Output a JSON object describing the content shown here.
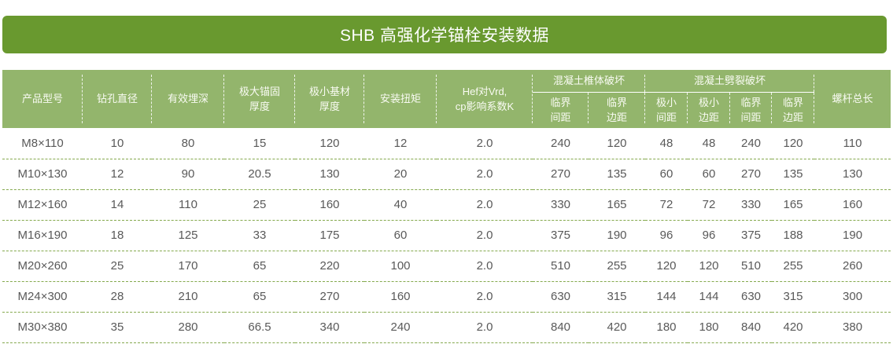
{
  "title": "SHB 高强化学锚栓安装数据",
  "colors": {
    "title_bar_green": "#69992f",
    "header_green": "#93b56c",
    "row_divider_green": "#85a94e",
    "header_text": "#f9fbf3",
    "body_text": "#595959"
  },
  "table": {
    "header": {
      "product_model": "产品型号",
      "drill_diameter": "钻孔直径",
      "effective_depth": "有效埋深",
      "max_anchor_thickness": "极大锚固\n厚度",
      "min_base_thickness": "极小基材\n厚度",
      "install_torque": "安装扭矩",
      "hef_k_factor": "Hef对Vrd,\ncp影响系数K",
      "groups": [
        {
          "label": "混凝土椎体破坏",
          "sub": [
            "临界\n间距",
            "临界\n边距"
          ]
        },
        {
          "label": "混凝土劈裂破坏",
          "sub": [
            "极小\n间距",
            "极小\n边距",
            "临界\n间距",
            "临界\n边距"
          ]
        }
      ],
      "total_rod_length": "螺杆总长"
    },
    "rows": [
      [
        "M8×110",
        "10",
        "80",
        "15",
        "120",
        "12",
        "2.0",
        "240",
        "120",
        "48",
        "48",
        "240",
        "120",
        "110"
      ],
      [
        "M10×130",
        "12",
        "90",
        "20.5",
        "130",
        "20",
        "2.0",
        "270",
        "135",
        "60",
        "60",
        "270",
        "135",
        "130"
      ],
      [
        "M12×160",
        "14",
        "110",
        "25",
        "160",
        "40",
        "2.0",
        "330",
        "165",
        "72",
        "72",
        "330",
        "165",
        "160"
      ],
      [
        "M16×190",
        "18",
        "125",
        "33",
        "175",
        "60",
        "2.0",
        "375",
        "190",
        "96",
        "96",
        "375",
        "188",
        "190"
      ],
      [
        "M20×260",
        "25",
        "170",
        "65",
        "220",
        "100",
        "2.0",
        "510",
        "255",
        "120",
        "120",
        "510",
        "255",
        "260"
      ],
      [
        "M24×300",
        "28",
        "210",
        "65",
        "270",
        "160",
        "2.0",
        "630",
        "315",
        "144",
        "144",
        "630",
        "315",
        "300"
      ],
      [
        "M30×380",
        "35",
        "280",
        "66.5",
        "340",
        "240",
        "2.0",
        "840",
        "420",
        "180",
        "180",
        "840",
        "420",
        "380"
      ]
    ]
  }
}
